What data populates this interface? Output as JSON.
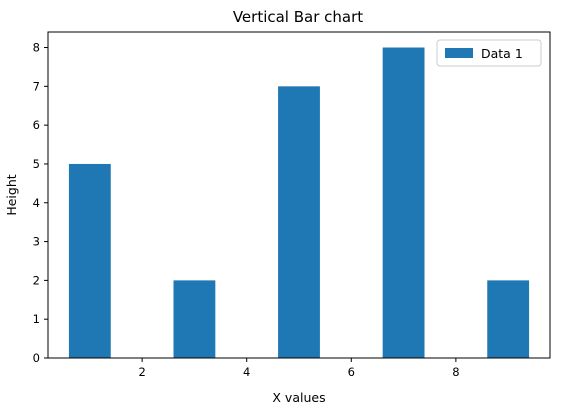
{
  "chart_data": {
    "type": "bar",
    "title": "Vertical Bar chart",
    "xlabel": "X values",
    "ylabel": "Height",
    "x": [
      1,
      3,
      5,
      7,
      9
    ],
    "series": [
      {
        "name": "Data 1",
        "values": [
          5,
          2,
          7,
          8,
          2
        ],
        "color": "#1f77b4"
      }
    ],
    "bar_width": 0.8,
    "xlim": [
      0.2,
      9.8
    ],
    "ylim": [
      0,
      8.4
    ],
    "xticks": [
      2,
      4,
      6,
      8
    ],
    "yticks": [
      0,
      1,
      2,
      3,
      4,
      5,
      6,
      7,
      8
    ],
    "grid": false,
    "legend_position": "top-right"
  }
}
